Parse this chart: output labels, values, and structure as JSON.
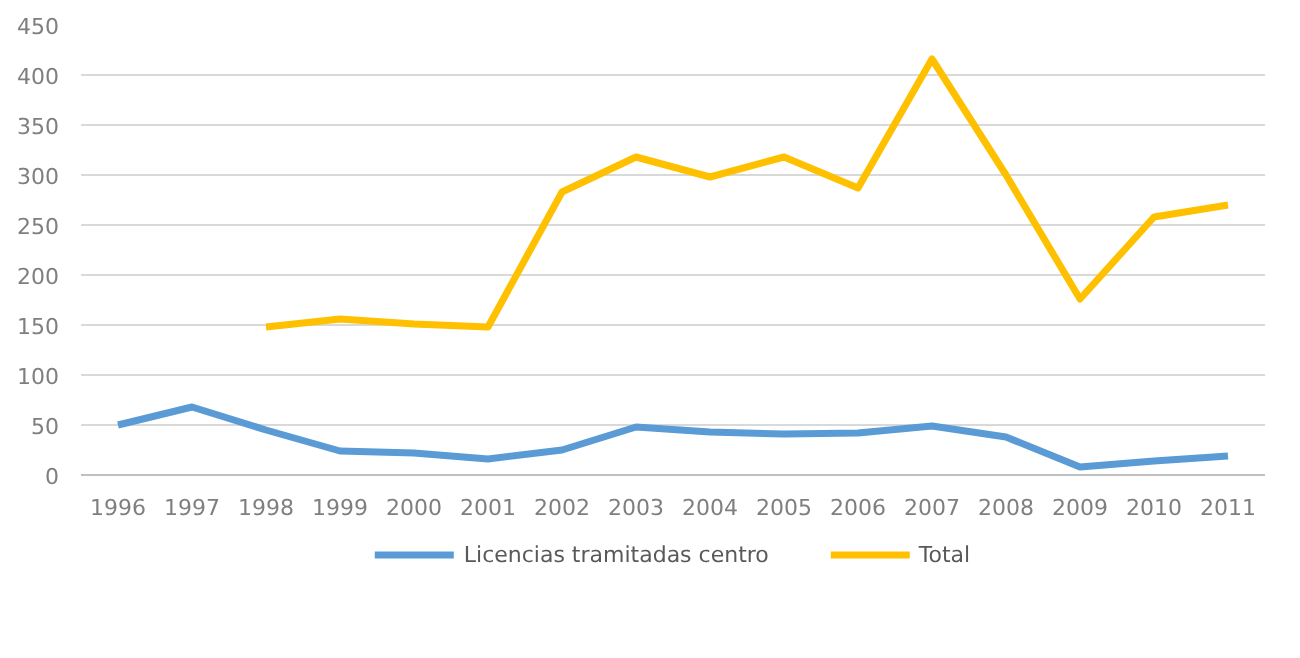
{
  "chart_data": {
    "type": "line",
    "categories": [
      "1996",
      "1997",
      "1998",
      "1999",
      "2000",
      "2001",
      "2002",
      "2003",
      "2004",
      "2005",
      "2006",
      "2007",
      "2008",
      "2009",
      "2010",
      "2011"
    ],
    "series": [
      {
        "name": "Licencias tramitadas centro",
        "color": "#5b9bd5",
        "values": [
          50,
          68,
          45,
          24,
          22,
          16,
          25,
          48,
          43,
          41,
          42,
          49,
          38,
          8,
          14,
          19
        ]
      },
      {
        "name": "Total",
        "color": "#ffc000",
        "values": [
          null,
          null,
          148,
          156,
          151,
          148,
          283,
          318,
          298,
          318,
          287,
          416,
          300,
          176,
          258,
          270
        ]
      }
    ],
    "ylim": [
      0,
      450
    ],
    "yticks": [
      0,
      50,
      100,
      150,
      200,
      250,
      300,
      350,
      400,
      450
    ],
    "grid": "y",
    "legend": "bottom",
    "marker": "none",
    "line_style": "solid"
  }
}
